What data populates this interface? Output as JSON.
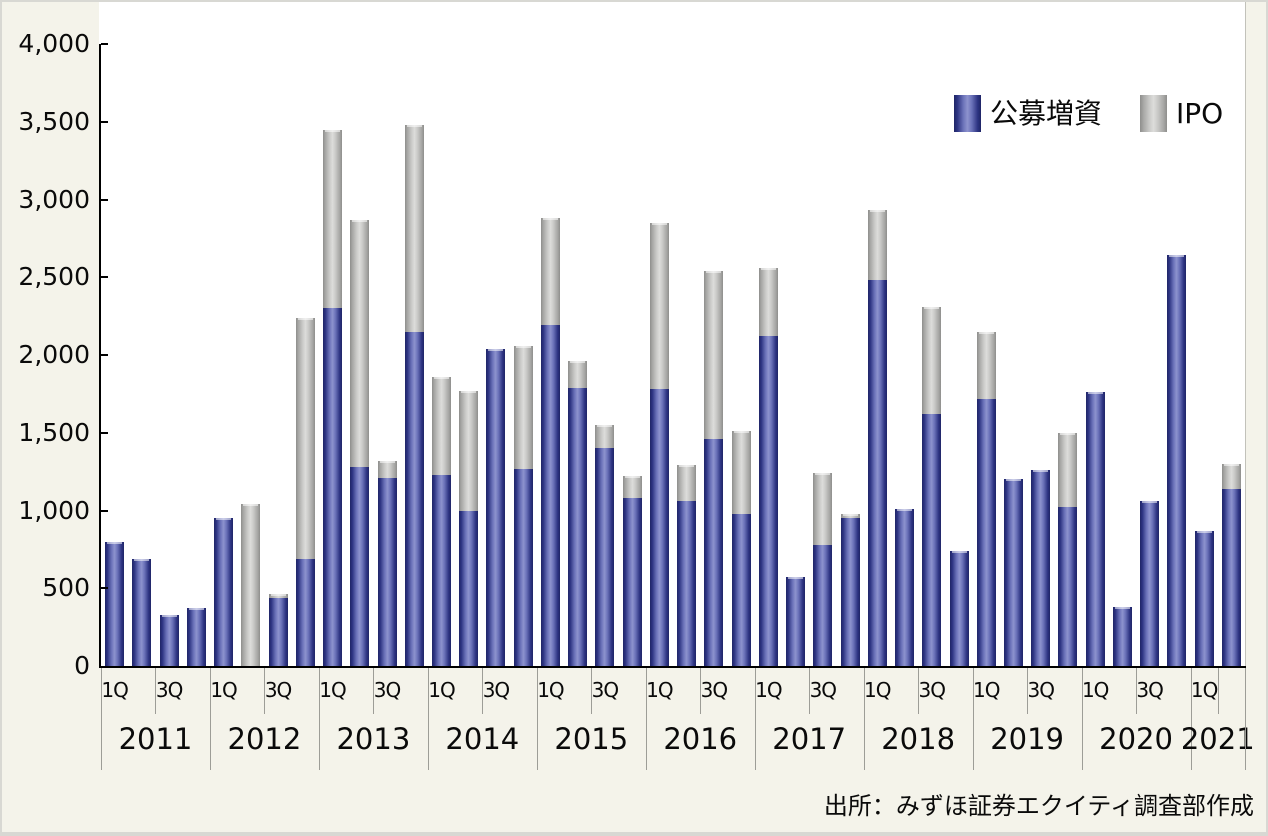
{
  "figure": {
    "background_color": "#f4f3ea",
    "plot_background_color": "#ffffff",
    "border_color": "#d8d8d3",
    "axis_color": "#000000"
  },
  "legend": {
    "position": "top-right",
    "items": [
      {
        "label": "公募増資",
        "color": "#2b3282",
        "swatch": "blue-gradient"
      },
      {
        "label": "IPO",
        "color": "#c9c9c7",
        "swatch": "gray-gradient"
      }
    ]
  },
  "source": {
    "text": "出所：みずほ証券エクイティ調査部作成"
  },
  "chart_data": {
    "type": "bar",
    "subtype": "stacked-vertical",
    "title": "",
    "xlabel": "",
    "ylabel": "",
    "ylim": [
      0,
      4000
    ],
    "ytick_step": 500,
    "y_tick_labels": [
      "0",
      "500",
      "1,000",
      "1,500",
      "2,000",
      "2,500",
      "3,000",
      "3,500",
      "4,000"
    ],
    "grid": false,
    "legend_position": "top-right",
    "years": [
      "2011",
      "2012",
      "2013",
      "2014",
      "2015",
      "2016",
      "2017",
      "2018",
      "2019",
      "2020",
      "2021"
    ],
    "quarters_per_year": [
      4,
      4,
      4,
      4,
      4,
      4,
      4,
      4,
      4,
      4,
      2
    ],
    "quarter_tick_labels_shown": [
      "1Q",
      "3Q"
    ],
    "series": [
      {
        "name": "公募増資",
        "color": "#2b3282",
        "values": [
          800,
          690,
          330,
          370,
          950,
          0,
          440,
          690,
          2300,
          1280,
          1210,
          2150,
          1230,
          1000,
          2040,
          1270,
          2190,
          1790,
          1400,
          1080,
          1780,
          1060,
          1460,
          980,
          2120,
          570,
          780,
          950,
          2480,
          1010,
          1620,
          740,
          1720,
          1200,
          1260,
          1020,
          1760,
          380,
          1060,
          2640,
          870,
          1140
        ]
      },
      {
        "name": "IPO",
        "color": "#c9c9c7",
        "values": [
          0,
          0,
          0,
          0,
          0,
          1040,
          20,
          1550,
          1150,
          1590,
          110,
          1330,
          630,
          770,
          0,
          790,
          690,
          170,
          150,
          140,
          1070,
          230,
          1080,
          530,
          440,
          0,
          460,
          30,
          450,
          0,
          690,
          0,
          430,
          0,
          0,
          480,
          0,
          0,
          0,
          0,
          0,
          160
        ]
      }
    ]
  }
}
